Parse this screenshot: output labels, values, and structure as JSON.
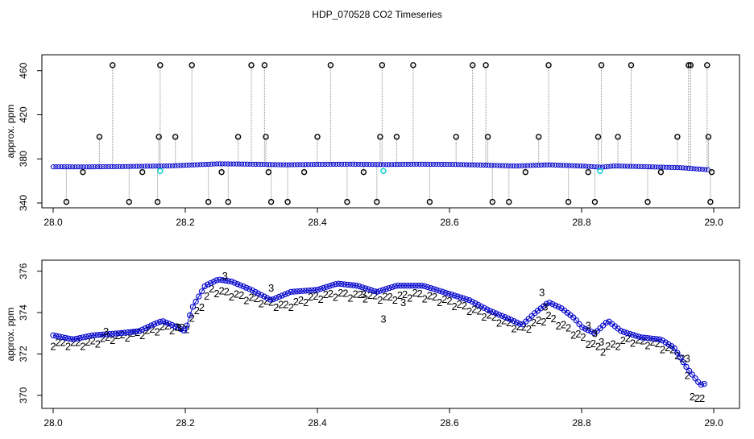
{
  "title": "HDP_070528  CO2 Timeseries",
  "colors": {
    "axis": "#000000",
    "spike": "#888888",
    "outlier": "#000000",
    "series_main": "#0000cc",
    "series_3": "#0000cc",
    "series_2": "#00aa00",
    "anomaly": "#00cccc"
  },
  "chart_data": [
    {
      "type": "scatter",
      "ylabel": "approx. ppm",
      "xlabel": "",
      "xlim": [
        28.0,
        29.0
      ],
      "ylim": [
        340,
        470
      ],
      "x_ticks": [
        "28.0",
        "28.2",
        "28.4",
        "28.6",
        "28.8",
        "29.0"
      ],
      "y_ticks": [
        "340",
        "380",
        "420",
        "460"
      ],
      "baseline": {
        "name": "",
        "x": [
          28.0,
          28.05,
          28.1,
          28.15,
          28.17,
          28.2,
          28.25,
          28.3,
          28.35,
          28.4,
          28.45,
          28.5,
          28.55,
          28.6,
          28.65,
          28.7,
          28.75,
          28.8,
          28.83,
          28.85,
          28.9,
          28.95,
          28.99
        ],
        "y": [
          372.8,
          372.7,
          373.0,
          373.4,
          373.5,
          374.2,
          375.5,
          375.2,
          374.6,
          375.0,
          375.2,
          374.8,
          375.2,
          375.0,
          374.4,
          373.5,
          374.6,
          373.5,
          372.4,
          373.6,
          372.8,
          372.0,
          370.2
        ]
      },
      "outliers": {
        "x": [
          28.02,
          28.045,
          28.07,
          28.09,
          28.115,
          28.135,
          28.158,
          28.16,
          28.162,
          28.185,
          28.21,
          28.235,
          28.255,
          28.265,
          28.28,
          28.3,
          28.32,
          28.322,
          28.326,
          28.33,
          28.355,
          28.38,
          28.4,
          28.42,
          28.445,
          28.47,
          28.49,
          28.495,
          28.498,
          28.52,
          28.545,
          28.57,
          28.61,
          28.635,
          28.655,
          28.658,
          28.665,
          28.69,
          28.715,
          28.735,
          28.75,
          28.78,
          28.81,
          28.82,
          28.825,
          28.83,
          28.855,
          28.875,
          28.9,
          28.92,
          28.945,
          28.962,
          28.965,
          28.99,
          28.992,
          28.995,
          28.997
        ],
        "y": [
          341,
          368,
          400,
          465,
          341,
          368,
          341,
          400,
          465,
          400,
          465,
          341,
          368,
          341,
          400,
          465,
          465,
          400,
          368,
          341,
          341,
          368,
          400,
          465,
          341,
          368,
          341,
          400,
          465,
          400,
          465,
          341,
          400,
          465,
          465,
          400,
          341,
          341,
          368,
          400,
          465,
          341,
          368,
          341,
          400,
          465,
          400,
          465,
          341,
          368,
          400,
          465,
          465,
          465,
          400,
          341,
          368
        ]
      },
      "anomalies": {
        "x": [
          28.162,
          28.5,
          28.828
        ],
        "y": [
          369,
          369,
          369
        ]
      }
    },
    {
      "type": "scatter",
      "ylabel": "approx. ppm",
      "xlabel": "",
      "xlim": [
        28.0,
        29.0
      ],
      "ylim": [
        369.6,
        376.3
      ],
      "x_ticks": [
        "28.0",
        "28.2",
        "28.4",
        "28.6",
        "28.8",
        "29.0"
      ],
      "y_ticks": [
        "370",
        "372",
        "374",
        "376"
      ],
      "series": [
        {
          "name": "",
          "marker": "o",
          "x": [
            28.0,
            28.03,
            28.06,
            28.1,
            28.13,
            28.15,
            28.165,
            28.18,
            28.2,
            28.21,
            28.23,
            28.25,
            28.27,
            28.3,
            28.33,
            28.36,
            28.4,
            28.43,
            28.46,
            28.49,
            28.52,
            28.56,
            28.6,
            28.63,
            28.66,
            28.69,
            28.71,
            28.73,
            28.75,
            28.77,
            28.79,
            28.8,
            28.82,
            28.84,
            28.86,
            28.89,
            28.92,
            28.94,
            28.96,
            28.98,
            28.99
          ],
          "y": [
            372.9,
            372.7,
            372.9,
            373.0,
            373.1,
            373.4,
            373.6,
            373.4,
            373.1,
            374.2,
            375.3,
            375.6,
            375.5,
            375.1,
            374.6,
            375.0,
            375.1,
            375.4,
            375.3,
            375.0,
            375.3,
            375.3,
            374.9,
            374.6,
            374.1,
            373.7,
            373.4,
            374.0,
            374.5,
            374.2,
            373.7,
            373.3,
            373.0,
            373.6,
            373.1,
            372.8,
            372.7,
            372.3,
            371.3,
            370.5,
            370.6
          ]
        },
        {
          "name": "",
          "marker": "2",
          "x": [
            28.01,
            28.05,
            28.09,
            28.13,
            28.17,
            28.2,
            28.24,
            28.27,
            28.31,
            28.35,
            28.39,
            28.43,
            28.47,
            28.51,
            28.55,
            28.59,
            28.63,
            28.67,
            28.71,
            28.75,
            28.79,
            28.83,
            28.87,
            28.91,
            28.95,
            28.97
          ],
          "y": [
            372.5,
            372.5,
            372.8,
            373.0,
            373.3,
            373.2,
            375.1,
            374.9,
            374.6,
            374.3,
            374.7,
            374.9,
            374.8,
            374.7,
            374.9,
            374.6,
            374.2,
            373.7,
            373.2,
            373.8,
            373.0,
            372.2,
            372.7,
            372.5,
            372.0,
            369.8
          ]
        },
        {
          "name": "",
          "marker": "3",
          "x": [
            28.08,
            28.19,
            28.26,
            28.33,
            28.47,
            28.5,
            28.53,
            28.74,
            28.745,
            28.81,
            28.82,
            28.83,
            28.96
          ],
          "y": [
            373.1,
            373.3,
            375.8,
            375.2,
            374.9,
            373.7,
            374.5,
            375.0,
            374.3,
            373.4,
            373.0,
            372.6,
            371.8
          ]
        }
      ]
    }
  ]
}
